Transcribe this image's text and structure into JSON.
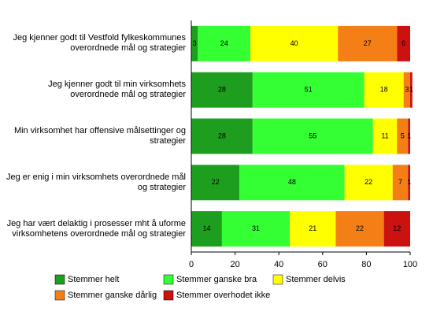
{
  "chart_data": {
    "type": "stacked_barh",
    "categories": [
      "Jeg kjenner godt til Vestfold fylkeskommunes overordnede mål og strategier",
      "Jeg kjenner godt til min virksomhets overordnede mål og strategier",
      "Min virksomhet har offensive målsettinger og strategier",
      "Jeg er enig i min virksomhets overordnede mål og strategier",
      "Jeg har vært delaktig i prosesser mht å uforme virksomhetens overordnede mål og strategier"
    ],
    "series": [
      {
        "name": "Stemmer helt",
        "color": "#1e9e1e",
        "values": [
          3,
          28,
          28,
          22,
          14
        ]
      },
      {
        "name": "Stemmer ganske bra",
        "color": "#33ff33",
        "values": [
          24,
          51,
          55,
          48,
          31
        ]
      },
      {
        "name": "Stemmer delvis",
        "color": "#ffff00",
        "values": [
          40,
          18,
          11,
          22,
          21
        ]
      },
      {
        "name": "Stemmer ganske dårlig",
        "color": "#f57f17",
        "values": [
          27,
          3,
          5,
          7,
          22
        ]
      },
      {
        "name": "Stemmer overhodet ikke",
        "color": "#cc1111",
        "values": [
          6,
          1,
          1,
          1,
          12
        ]
      }
    ],
    "xlim": [
      0,
      100
    ],
    "xticks": [
      0,
      20,
      40,
      60,
      80,
      100
    ]
  }
}
